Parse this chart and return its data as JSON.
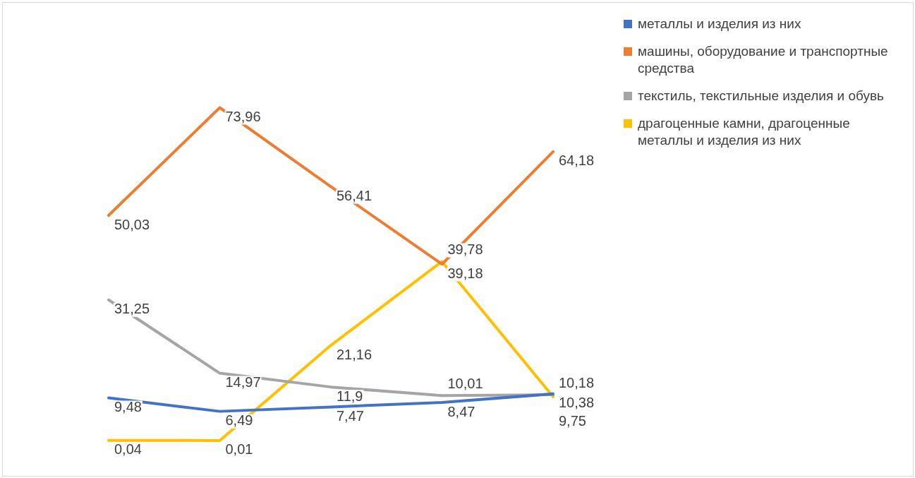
{
  "chart_data": {
    "type": "line",
    "categories": [
      null,
      null,
      null,
      null,
      null
    ],
    "series": [
      {
        "name": "металлы и изделия из них",
        "color": "#4472c4",
        "values": [
          9.48,
          6.49,
          7.47,
          8.47,
          10.38
        ],
        "value_labels": [
          "9,48",
          "6,49",
          "7,47",
          "8,47",
          "10,38"
        ]
      },
      {
        "name": "машины, оборудование и транспортные средства",
        "color": "#ed7d31",
        "values": [
          50.03,
          73.96,
          56.41,
          39.18,
          64.18
        ],
        "value_labels": [
          "50,03",
          "73,96",
          "56,41",
          "39,18",
          "64,18"
        ]
      },
      {
        "name": "текстиль, текстильные изделия и обувь",
        "color": "#a5a5a5",
        "values": [
          31.25,
          14.97,
          11.9,
          10.01,
          10.18
        ],
        "value_labels": [
          "31,25",
          "14,97",
          "11,9",
          "10,01",
          "10,18"
        ]
      },
      {
        "name": "драгоценные камни, драгоценные металлы и изделия из них",
        "color": "#ffc000",
        "values": [
          0.04,
          0.01,
          21.16,
          39.78,
          9.75
        ],
        "value_labels": [
          "0,04",
          "0,01",
          "21,16",
          "39,78",
          "9,75"
        ]
      }
    ],
    "legend": "top right",
    "marker": "none",
    "line_style": "solid"
  }
}
